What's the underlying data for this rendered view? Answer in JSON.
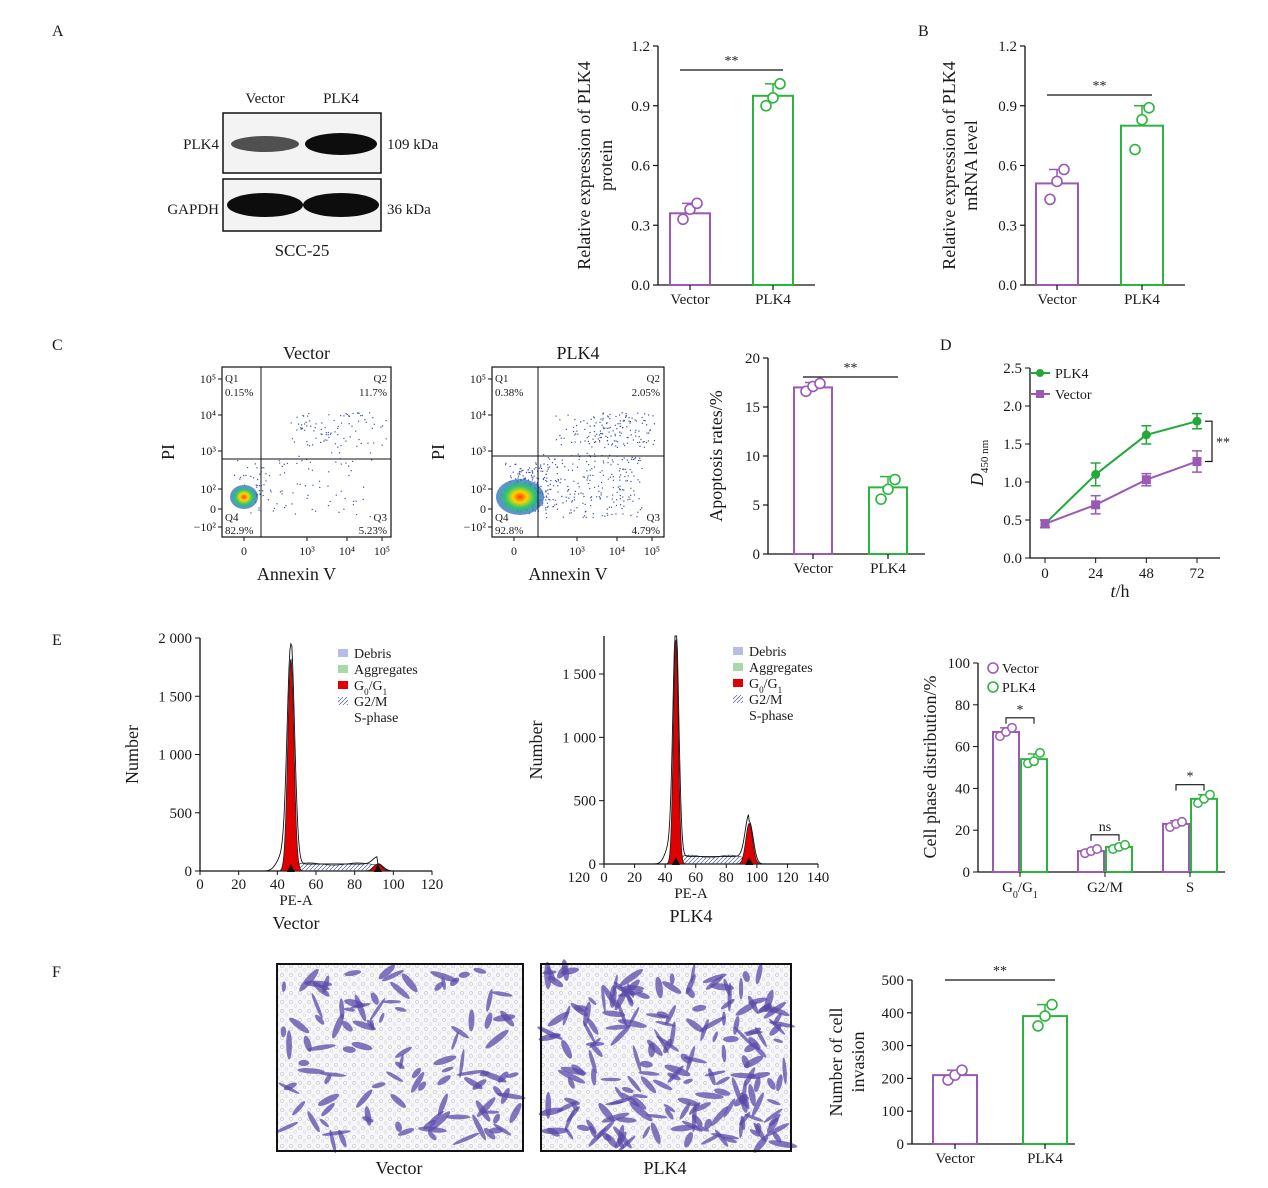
{
  "panel_letters": {
    "A": "A",
    "B": "B",
    "C": "C",
    "D": "D",
    "E": "E",
    "F": "F"
  },
  "colors": {
    "vector": "#9b59b6",
    "plk4": "#22a93a",
    "vector_bar": "#9b59b6",
    "plk4_bar": "#2bb53f",
    "red_peak": "#e00000"
  },
  "western_blot": {
    "lane_labels": [
      "Vector",
      "PLK4"
    ],
    "rows": [
      {
        "label": "PLK4",
        "size": "109 kDa"
      },
      {
        "label": "GAPDH",
        "size": "36 kDa"
      }
    ],
    "cell_line": "SCC-25"
  },
  "flow_vector": {
    "title": "Vector",
    "ylabel": "PI",
    "xlabel": "Annexin V",
    "quadrants": [
      {
        "name": "Q1",
        "value": "0.15%"
      },
      {
        "name": "Q2",
        "value": "11.7%"
      },
      {
        "name": "Q3",
        "value": "5.23%"
      },
      {
        "name": "Q4",
        "value": "82.9%"
      }
    ],
    "yticks": [
      "10⁵",
      "10⁴",
      "10³",
      "10²",
      "0",
      "−10²"
    ],
    "xticks": [
      "0",
      "10³",
      "10⁴",
      "10⁵"
    ]
  },
  "flow_plk4": {
    "title": "PLK4",
    "ylabel": "PI",
    "xlabel": "Annexin V",
    "quadrants": [
      {
        "name": "Q1",
        "value": "0.38%"
      },
      {
        "name": "Q2",
        "value": "2.05%"
      },
      {
        "name": "Q3",
        "value": "4.79%"
      },
      {
        "name": "Q4",
        "value": "92.8%"
      }
    ],
    "yticks": [
      "10⁵",
      "10⁴",
      "10³",
      "10²",
      "0",
      "−10²"
    ],
    "xticks": [
      "0",
      "10³",
      "10⁴",
      "10⁵"
    ]
  },
  "cell_cycle_legend": [
    "Debris",
    "Aggregates",
    "G0/G1",
    "G2/M",
    "S-phase"
  ],
  "transwell_labels": [
    "Vector",
    "PLK4"
  ],
  "chart_data": [
    {
      "id": "A_protein",
      "type": "bar",
      "categories": [
        "Vector",
        "PLK4"
      ],
      "values": [
        0.36,
        0.95
      ],
      "errors": [
        0.05,
        0.06
      ],
      "points": [
        [
          0.33,
          0.38,
          0.41
        ],
        [
          0.9,
          0.94,
          1.01
        ]
      ],
      "ylabel": [
        "Relative expression of PLK4",
        "protein"
      ],
      "ylim": [
        0,
        1.2
      ],
      "yticks": [
        "0.0",
        "0.3",
        "0.6",
        "0.9",
        "1.2"
      ],
      "significance": [
        {
          "between": [
            0,
            1
          ],
          "label": "**"
        }
      ]
    },
    {
      "id": "B_mrna",
      "type": "bar",
      "categories": [
        "Vector",
        "PLK4"
      ],
      "values": [
        0.51,
        0.8
      ],
      "errors": [
        0.07,
        0.1
      ],
      "points": [
        [
          0.43,
          0.52,
          0.58
        ],
        [
          0.68,
          0.83,
          0.89
        ]
      ],
      "ylabel": [
        "Relative expression of PLK4",
        "mRNA level"
      ],
      "ylim": [
        0,
        1.2
      ],
      "yticks": [
        "0.0",
        "0.3",
        "0.6",
        "0.9",
        "1.2"
      ],
      "significance": [
        {
          "between": [
            0,
            1
          ],
          "label": "**"
        }
      ]
    },
    {
      "id": "C_apoptosis",
      "type": "bar",
      "categories": [
        "Vector",
        "PLK4"
      ],
      "values": [
        17.0,
        6.8
      ],
      "errors": [
        0.5,
        1.1
      ],
      "points": [
        [
          16.6,
          17.1,
          17.4
        ],
        [
          5.6,
          6.6,
          7.6
        ]
      ],
      "ylabel": [
        "Apoptosis rates/%"
      ],
      "ylim": [
        0,
        20
      ],
      "yticks": [
        "0",
        "5",
        "10",
        "15",
        "20"
      ],
      "significance": [
        {
          "between": [
            0,
            1
          ],
          "label": "**"
        }
      ]
    },
    {
      "id": "D_cck8",
      "type": "line",
      "x": [
        0,
        24,
        48,
        72
      ],
      "xticks": [
        "0",
        "24",
        "48",
        "72"
      ],
      "series": [
        {
          "name": "PLK4",
          "values": [
            0.45,
            1.1,
            1.62,
            1.8
          ],
          "errors": [
            0.05,
            0.15,
            0.12,
            0.1
          ]
        },
        {
          "name": "Vector",
          "values": [
            0.45,
            0.7,
            1.03,
            1.27
          ],
          "errors": [
            0.05,
            0.12,
            0.08,
            0.14
          ]
        }
      ],
      "ylabel": "D",
      "ylabel_sub": "450 nm",
      "xlabel_italic": "t",
      "xlabel_rest": "/h",
      "ylim": [
        0,
        2.5
      ],
      "yticks": [
        "0.0",
        "0.5",
        "1.0",
        "1.5",
        "2.0",
        "2.5"
      ],
      "significance": "**"
    },
    {
      "id": "E_hist_vector",
      "type": "area",
      "title": "Vector",
      "xlabel": "PE-A",
      "ylabel": "Number",
      "xlim": [
        0,
        120
      ],
      "xticks": [
        "0",
        "20",
        "40",
        "60",
        "80",
        "100",
        "120"
      ],
      "ylim": [
        0,
        2000
      ],
      "yticks": [
        "0",
        "500",
        "1 000",
        "1 500",
        "2 000"
      ],
      "peaks": [
        {
          "x": 47,
          "height": 1820,
          "phase": "G0/G1"
        },
        {
          "x": 92,
          "height": 60,
          "phase": "G2/M"
        }
      ],
      "markers": [
        47,
        92
      ]
    },
    {
      "id": "E_hist_plk4",
      "type": "area",
      "title": "PLK4",
      "xlabel": "PE-A",
      "ylabel": "Number",
      "xlim": [
        0,
        140
      ],
      "xticks": [
        "0",
        "20",
        "40",
        "60",
        "80",
        "100",
        "120",
        "140"
      ],
      "extra_left_tick": "120",
      "ylim": [
        0,
        1800
      ],
      "yticks": [
        "0",
        "500",
        "1 000",
        "1 500"
      ],
      "peaks": [
        {
          "x": 47,
          "height": 1770,
          "phase": "G0/G1"
        },
        {
          "x": 95,
          "height": 320,
          "phase": "G2/M"
        }
      ],
      "markers": [
        47,
        95
      ]
    },
    {
      "id": "E_phase",
      "type": "bar",
      "categories": [
        "G0/G1",
        "G2/M",
        "S"
      ],
      "series": [
        {
          "name": "Vector",
          "values": [
            67,
            10,
            23
          ],
          "errors": [
            2,
            1,
            1.5
          ],
          "points": [
            [
              65,
              67,
              69
            ],
            [
              9,
              10,
              11
            ],
            [
              21.5,
              23,
              24
            ]
          ]
        },
        {
          "name": "PLK4",
          "values": [
            54,
            12,
            35
          ],
          "errors": [
            2.5,
            1,
            2
          ],
          "points": [
            [
              52,
              53,
              57
            ],
            [
              11,
              12,
              13
            ],
            [
              33,
              35,
              37
            ]
          ]
        }
      ],
      "ylabel": "Cell phase distribution/%",
      "ylim": [
        0,
        100
      ],
      "yticks": [
        "0",
        "20",
        "40",
        "60",
        "80",
        "100"
      ],
      "significance": [
        "*",
        "ns",
        "*"
      ]
    },
    {
      "id": "F_invasion",
      "type": "bar",
      "categories": [
        "Vector",
        "PLK4"
      ],
      "values": [
        210,
        390
      ],
      "errors": [
        15,
        35
      ],
      "points": [
        [
          195,
          210,
          225
        ],
        [
          360,
          390,
          425
        ]
      ],
      "ylabel": [
        "Number of cell",
        "invasion"
      ],
      "ylim": [
        0,
        500
      ],
      "yticks": [
        "0",
        "100",
        "200",
        "300",
        "400",
        "500"
      ],
      "significance": [
        {
          "between": [
            0,
            1
          ],
          "label": "**"
        }
      ]
    }
  ]
}
